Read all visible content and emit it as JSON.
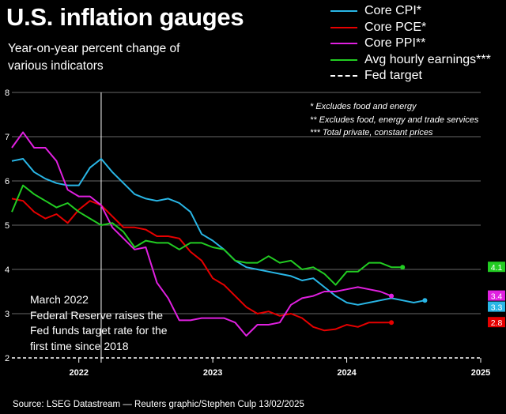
{
  "header": {
    "title": "U.S. inflation gauges",
    "subtitle": "Year-on-year percent change of various indicators"
  },
  "legend": [
    {
      "label": "Core CPI*",
      "color": "#29b6e6"
    },
    {
      "label": "Core PCE*",
      "color": "#e60000"
    },
    {
      "label": "Core PPI**",
      "color": "#e020e0"
    },
    {
      "label": "Avg hourly earnings***",
      "color": "#22cc22"
    },
    {
      "label": "Fed target",
      "color": "#ffffff",
      "dashed": true
    }
  ],
  "footnotes": [
    "* Excludes food and energy",
    "** Excludes food, energy and trade services",
    "*** Total private, constant prices"
  ],
  "annotation": {
    "line1": "March 2022",
    "line2": "Federal Reserve raises the Fed funds target rate for the first time since 2018"
  },
  "source": "Source: LSEG Datastream — Reuters graphic/Stephen Culp 13/02/2025",
  "chart_data": {
    "type": "line",
    "x_start": "2021-07",
    "x_end": "2024-12",
    "x_range": [
      "2021-07",
      "2025-01"
    ],
    "ylim": [
      2,
      8
    ],
    "yticks": [
      2,
      3,
      4,
      5,
      6,
      7,
      8
    ],
    "xticks": [
      {
        "label": "2022",
        "date": "2022-01"
      },
      {
        "label": "2023",
        "date": "2023-01"
      },
      {
        "label": "2024",
        "date": "2024-01"
      },
      {
        "label": "2025",
        "date": "2025-01"
      }
    ],
    "grid": true,
    "fed_target": 2,
    "event_line": "2022-03",
    "series": [
      {
        "name": "Core CPI*",
        "color": "#29b6e6",
        "end_label": "3.3",
        "values": [
          6.45,
          6.5,
          6.2,
          6.05,
          5.95,
          5.9,
          5.9,
          6.3,
          6.5,
          6.2,
          5.95,
          5.7,
          5.6,
          5.55,
          5.6,
          5.5,
          5.3,
          4.8,
          4.65,
          4.45,
          4.2,
          4.05,
          4.0,
          3.95,
          3.9,
          3.85,
          3.75,
          3.8,
          3.6,
          3.4,
          3.25,
          3.2,
          3.25,
          3.3,
          3.35,
          3.3,
          3.25,
          3.3
        ]
      },
      {
        "name": "Core PCE*",
        "color": "#e60000",
        "end_label": "2.8",
        "values": [
          5.6,
          5.55,
          5.3,
          5.15,
          5.25,
          5.05,
          5.35,
          5.55,
          5.45,
          5.2,
          4.95,
          4.95,
          4.9,
          4.75,
          4.75,
          4.7,
          4.4,
          4.2,
          3.8,
          3.65,
          3.4,
          3.15,
          3.0,
          3.05,
          2.95,
          3.0,
          2.9,
          2.7,
          2.62,
          2.65,
          2.75,
          2.7,
          2.8,
          2.8,
          2.8
        ]
      },
      {
        "name": "Core PPI**",
        "color": "#e020e0",
        "end_label": "3.4",
        "values": [
          6.75,
          7.1,
          6.75,
          6.75,
          6.45,
          5.8,
          5.65,
          5.65,
          5.45,
          4.95,
          4.7,
          4.45,
          4.5,
          3.7,
          3.35,
          2.85,
          2.85,
          2.9,
          2.9,
          2.9,
          2.8,
          2.5,
          2.75,
          2.75,
          2.8,
          3.2,
          3.35,
          3.4,
          3.5,
          3.5,
          3.55,
          3.6,
          3.55,
          3.5,
          3.4
        ]
      },
      {
        "name": "Avg hourly earnings***",
        "color": "#22cc22",
        "end_label": "4.1",
        "values": [
          5.3,
          5.9,
          5.7,
          5.55,
          5.4,
          5.5,
          5.3,
          5.15,
          5.0,
          5.05,
          4.85,
          4.5,
          4.65,
          4.6,
          4.6,
          4.45,
          4.6,
          4.6,
          4.5,
          4.45,
          4.2,
          4.15,
          4.15,
          4.3,
          4.15,
          4.2,
          4.0,
          4.05,
          3.9,
          3.65,
          3.95,
          3.95,
          4.15,
          4.15,
          4.05,
          4.05
        ]
      }
    ]
  }
}
